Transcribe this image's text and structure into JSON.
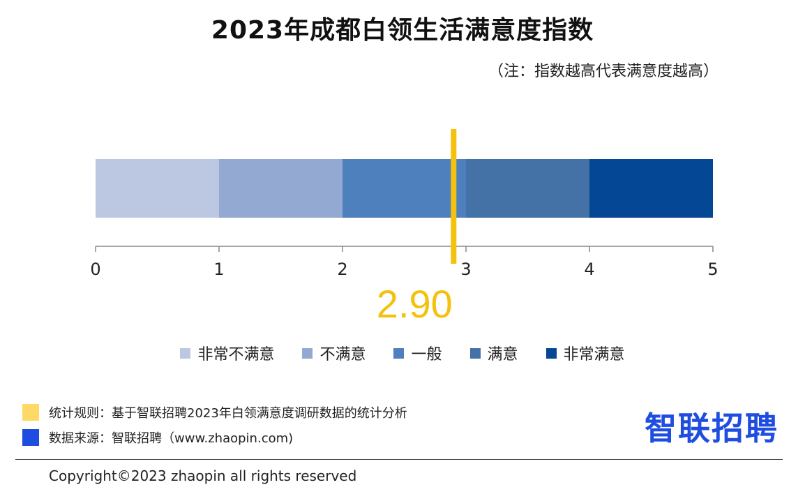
{
  "title": "2023年成都白领生活满意度指数",
  "note": "（注：指数越高代表满意度越高）",
  "chart_data": {
    "type": "bar",
    "orientation": "horizontal-stacked",
    "title": "2023年成都白领生活满意度指数",
    "xlim": [
      0,
      5
    ],
    "ticks": [
      0,
      1,
      2,
      3,
      4,
      5
    ],
    "segments": [
      {
        "name": "非常不满意",
        "start": 0,
        "end": 1,
        "color": "#bcc8e2"
      },
      {
        "name": "不满意",
        "start": 1,
        "end": 2,
        "color": "#93a9d1"
      },
      {
        "name": "一般",
        "start": 2,
        "end": 3,
        "color": "#4d80bd"
      },
      {
        "name": "满意",
        "start": 3,
        "end": 4,
        "color": "#4471a6"
      },
      {
        "name": "非常满意",
        "start": 4,
        "end": 5,
        "color": "#044895"
      }
    ],
    "marker": {
      "value": 2.9,
      "label": "2.90",
      "color": "#f4c10f"
    },
    "legend_position": "bottom"
  },
  "footnotes": [
    {
      "text": "统计规则：基于智联招聘2023年白领满意度调研数据的统计分析",
      "color": "#ffd966"
    },
    {
      "text": "数据来源：智联招聘（www.zhaopin.com)",
      "color": "#1f4de0"
    }
  ],
  "logo": "智联招聘",
  "copyright": "Copyright©2023 zhaopin all rights reserved"
}
